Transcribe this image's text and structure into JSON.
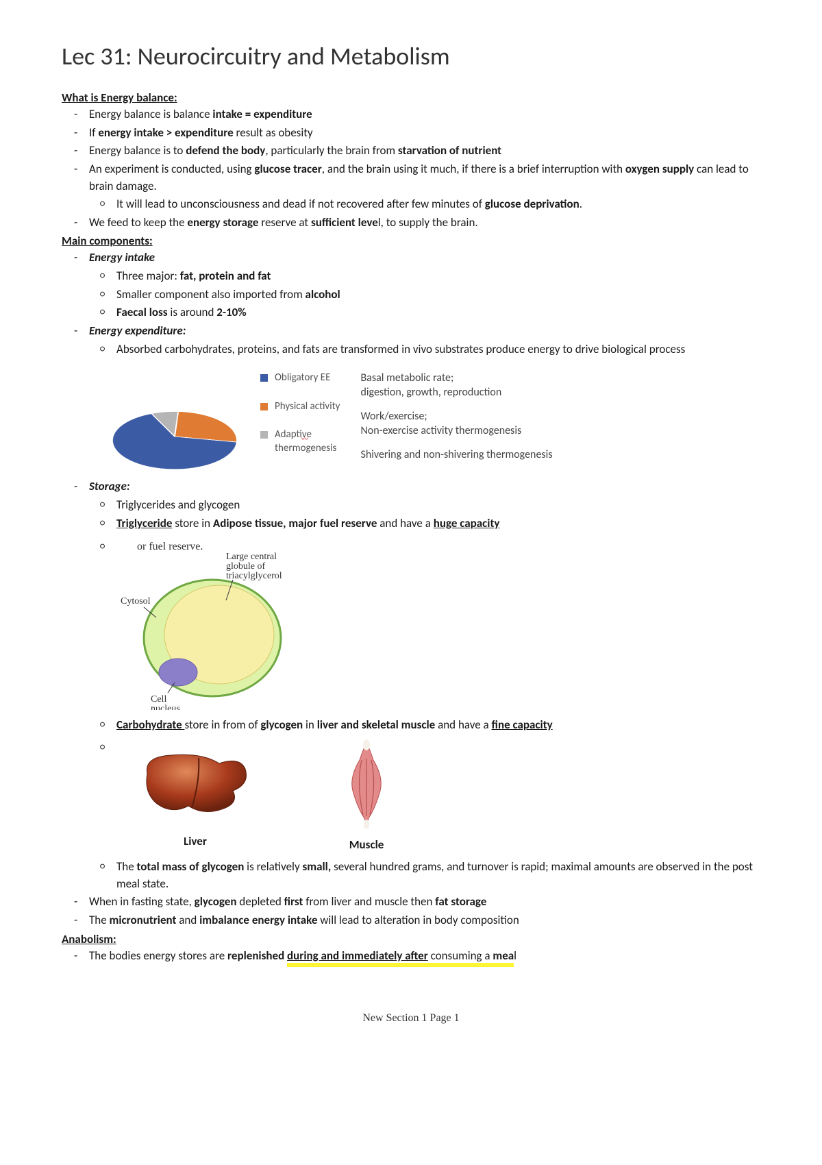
{
  "title": "Lec 31: Neurocircuitry and Metabolism",
  "s1": {
    "head": "What is Energy balance:",
    "b1a": "Energy balance is balance ",
    "b1b": "intake = expenditure",
    "b2a": "If ",
    "b2b": "energy intake > expenditure",
    "b2c": " result as obesity",
    "b3a": "Energy balance is to ",
    "b3b": "defend the body",
    "b3c": ", particularly the brain from ",
    "b3d": "starvation of nutrient",
    "b4a": "An experiment is conducted, using ",
    "b4b": "glucose tracer",
    "b4c": ", and the brain using it much, if there is a brief interruption with ",
    "b4d": "oxygen supply",
    "b4e": " can lead to brain damage.",
    "b4s1a": "It will lead to unconsciousness and dead if not recovered after few minutes of ",
    "b4s1b": "glucose deprivation",
    "b4s1c": ".",
    "b5a": "We feed to keep the ",
    "b5b": "energy storage",
    "b5c": " reserve at ",
    "b5d": "sufficient leve",
    "b5e": "l, to supply the brain."
  },
  "s2": {
    "head": "Main components:",
    "intake_head": "Energy intake",
    "i1a": "Three major: ",
    "i1b": "fat, protein and fat",
    "i2a": "Smaller component also imported from ",
    "i2b": "alcohol",
    "i3a": "Faecal loss",
    "i3b": " is around ",
    "i3c": "2-10%",
    "exp_head": "Energy expenditure:",
    "e1": "Absorbed carbohydrates, proteins, and fats are transformed in vivo substrates produce energy to drive biological process"
  },
  "pie": {
    "slices": [
      {
        "label": "Obligatory EE",
        "color": "#3b5ba5",
        "pct": 65,
        "desc": "Basal metabolic rate; digestion, growth, reproduction"
      },
      {
        "label": "Physical activity",
        "color": "#e07b33",
        "pct": 27,
        "desc": "Work/exercise; Non-exercise activity thermogenesis"
      },
      {
        "label": "Adaptive thermogenesis",
        "color": "#b5b5b5",
        "pct": 8,
        "desc": "Shivering and non-shivering thermogenesis",
        "squiggle": true
      }
    ],
    "label_fontsize": 15,
    "squiggle_color": "#d40000"
  },
  "storage": {
    "head": "Storage:",
    "st1": "Triglycerides and glycogen",
    "st2a": "Triglyceride",
    "st2b": " store in ",
    "st2c": "Adipose tissue, major fuel reserve",
    "st2d": " and have a ",
    "st2e": "huge capacity",
    "adipo": {
      "top_text": "or fuel reserve.",
      "lab1": "Large central globule of triacylglycerol",
      "lab2": "Cytosol",
      "lab3": "Cell nucleus",
      "membrane_color": "#6fa843",
      "lipid_color": "#f7eea8",
      "cytosol_color": "#dff3a8",
      "nucleus_color": "#8b7fc9",
      "label_font": "Times New Roman"
    },
    "st3a": "Carbohydrate ",
    "st3b": "store in from of ",
    "st3c": "glycogen",
    "st3d": " in ",
    "st3e": "liver and skeletal muscle",
    "st3f": " and have a ",
    "st3g": "fine capacity",
    "liver_label": "Liver",
    "muscle_label": "Muscle",
    "liver_colors": {
      "fill": "#a83a1c",
      "hi": "#e0885a",
      "dark": "#6b220e"
    },
    "muscle_colors": {
      "fill": "#e38a8a",
      "line": "#b85050",
      "tendon": "#f5f0e8"
    },
    "st4a": "The ",
    "st4b": "total mass of glycogen",
    "st4c": " is relatively ",
    "st4d": "small,",
    "st4e": " several hundred grams, and turnover is rapid; maximal amounts are observed in the post meal state.",
    "b_fast_a": "When in fasting state, ",
    "b_fast_b": "glycogen",
    "b_fast_c": " depleted ",
    "b_fast_d": "first",
    "b_fast_e": " from liver and muscle then ",
    "b_fast_f": "fat storage",
    "b_micro_a": "The ",
    "b_micro_b": "micronutrient",
    "b_micro_c": " and ",
    "b_micro_d": "imbalance energy intake",
    "b_micro_e": " will lead to alteration in body composition"
  },
  "anab": {
    "head": "Anabolism:",
    "a1a": "The bodies energy stores are ",
    "a1b": "replenished ",
    "a1c": "during and immediately after",
    "a1d": " consuming a ",
    "a1e": "mea",
    "a1f": "l"
  },
  "footer": "New Section 1 Page 1"
}
